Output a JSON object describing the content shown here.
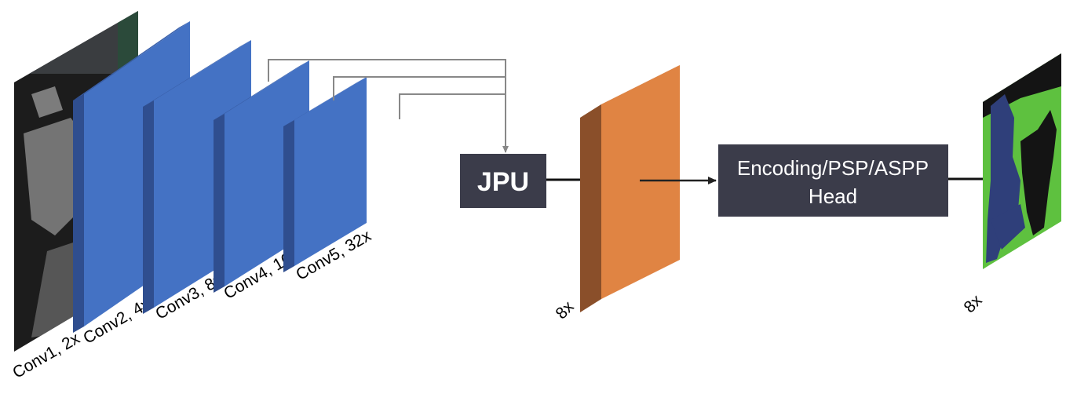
{
  "layers": [
    {
      "id": "conv1",
      "label": "Conv1, 2x"
    },
    {
      "id": "conv2",
      "label": "Conv2, 4x"
    },
    {
      "id": "conv3",
      "label": "Conv3, 8x"
    },
    {
      "id": "conv4",
      "label": "Conv4, 16x"
    },
    {
      "id": "conv5",
      "label": "Conv5, 32x"
    }
  ],
  "jpu": {
    "label": "JPU"
  },
  "feature_map": {
    "label": "8x"
  },
  "head": {
    "line1": "Encoding/PSP/ASPP",
    "line2": "Head"
  },
  "output": {
    "label": "8x"
  },
  "colors": {
    "layer_front": "#4472c4",
    "layer_side": "#2f4e8f",
    "layer_top": "#3a5fa8",
    "feature_front": "#e08443",
    "feature_side": "#8a4f2a",
    "box": "#3b3c4a",
    "arrow": "#888888",
    "line": "#111111",
    "seg_background": "#5ec13f",
    "seg_dog_blue": "#2f3f7a",
    "seg_dog_dark": "#141414"
  }
}
